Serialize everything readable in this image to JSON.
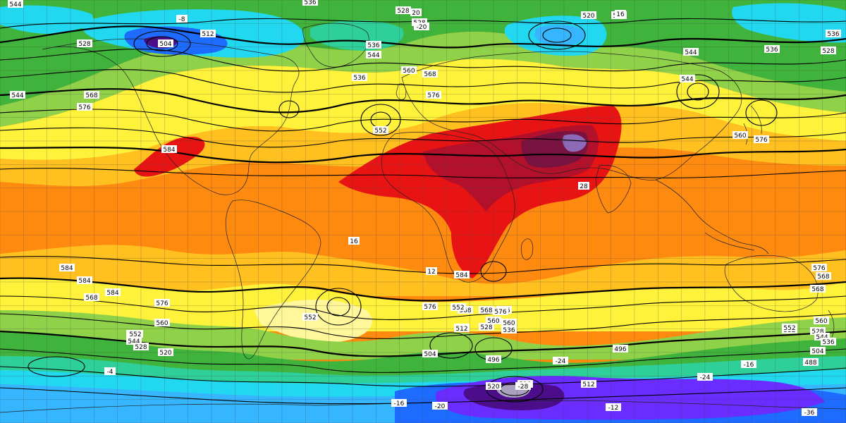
{
  "map": {
    "projection": "equirectangular",
    "field_fill": "temperature (color-shaded bands)",
    "field_contours": "geopotential height (dam)",
    "color_scale": [
      {
        "name": "very-cold",
        "color": "#4b0d8a"
      },
      {
        "name": "cold",
        "color": "#6a2cff"
      },
      {
        "name": "cool-blue",
        "color": "#1e6bff"
      },
      {
        "name": "light-blue",
        "color": "#35b6ff"
      },
      {
        "name": "cyan",
        "color": "#22d8f0"
      },
      {
        "name": "teal",
        "color": "#2fcf9a"
      },
      {
        "name": "green",
        "color": "#3fb33b"
      },
      {
        "name": "light-green",
        "color": "#8fd24a"
      },
      {
        "name": "yellow-green",
        "color": "#d6ea3c"
      },
      {
        "name": "yellow",
        "color": "#fff23a"
      },
      {
        "name": "pale-yellow",
        "color": "#fff79a"
      },
      {
        "name": "orange-yellow",
        "color": "#ffc020"
      },
      {
        "name": "orange",
        "color": "#ff8a10"
      },
      {
        "name": "deep-orange",
        "color": "#f96a07"
      },
      {
        "name": "red",
        "color": "#e81313"
      },
      {
        "name": "dark-red",
        "color": "#b3102b"
      },
      {
        "name": "maroon",
        "color": "#7a1240"
      },
      {
        "name": "very-hot",
        "color": "#8c6ab8"
      }
    ],
    "contour_labels": [
      {
        "text": "544"
      },
      {
        "text": "536"
      },
      {
        "text": "528"
      },
      {
        "text": "528"
      },
      {
        "text": "520"
      },
      {
        "text": "512"
      },
      {
        "text": "504"
      },
      {
        "text": "512"
      },
      {
        "text": "528"
      },
      {
        "text": "536"
      },
      {
        "text": "544"
      },
      {
        "text": "544"
      },
      {
        "text": "536"
      },
      {
        "text": "528"
      },
      {
        "text": "536"
      },
      {
        "text": "544"
      },
      {
        "text": "560"
      },
      {
        "text": "568"
      },
      {
        "text": "576"
      },
      {
        "text": "536"
      },
      {
        "text": "552"
      },
      {
        "text": "544"
      },
      {
        "text": "568"
      },
      {
        "text": "576"
      },
      {
        "text": "584"
      },
      {
        "text": "552"
      },
      {
        "text": "576"
      },
      {
        "text": "544"
      },
      {
        "text": "560"
      },
      {
        "text": "568"
      },
      {
        "text": "576"
      },
      {
        "text": "584"
      },
      {
        "text": "588"
      },
      {
        "text": "584"
      },
      {
        "text": "576"
      },
      {
        "text": "568"
      },
      {
        "text": "584"
      },
      {
        "text": "576"
      },
      {
        "text": "568"
      },
      {
        "text": "560"
      },
      {
        "text": "552"
      },
      {
        "text": "544"
      },
      {
        "text": "528"
      },
      {
        "text": "520"
      },
      {
        "text": "552"
      },
      {
        "text": "568"
      },
      {
        "text": "576"
      },
      {
        "text": "560"
      },
      {
        "text": "536"
      },
      {
        "text": "528"
      },
      {
        "text": "520"
      },
      {
        "text": "512"
      },
      {
        "text": "504"
      },
      {
        "text": "496"
      },
      {
        "text": "496"
      },
      {
        "text": "512"
      },
      {
        "text": "520"
      },
      {
        "text": "528"
      },
      {
        "text": "528"
      },
      {
        "text": "552"
      },
      {
        "text": "560"
      },
      {
        "text": "544"
      },
      {
        "text": "536"
      },
      {
        "text": "504"
      },
      {
        "text": "488"
      },
      {
        "text": "584"
      },
      {
        "text": "576"
      },
      {
        "text": "568"
      },
      {
        "text": "552"
      },
      {
        "text": "560"
      },
      {
        "text": "576"
      },
      {
        "text": "584"
      }
    ],
    "temperature_labels": [
      {
        "text": "-8"
      },
      {
        "text": "16"
      },
      {
        "text": "12"
      },
      {
        "text": "28"
      },
      {
        "text": "-20"
      },
      {
        "text": "-28"
      },
      {
        "text": "-24"
      },
      {
        "text": "-16"
      },
      {
        "text": "-12"
      },
      {
        "text": "-20"
      },
      {
        "text": "-36"
      },
      {
        "text": "-4"
      },
      {
        "text": "20"
      },
      {
        "text": "16"
      },
      {
        "text": "-16"
      },
      {
        "text": "-24"
      }
    ]
  }
}
